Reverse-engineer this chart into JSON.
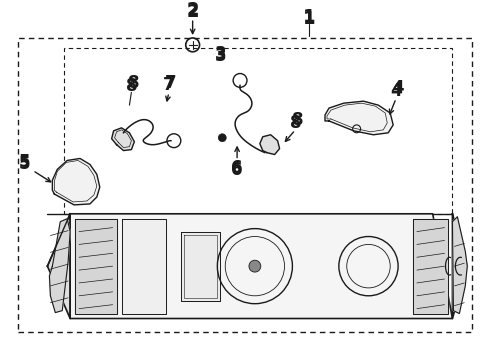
{
  "bg_color": "#ffffff",
  "line_color": "#1a1a1a",
  "gray_fill": "#e0e0e0",
  "light_gray": "#f2f2f2"
}
